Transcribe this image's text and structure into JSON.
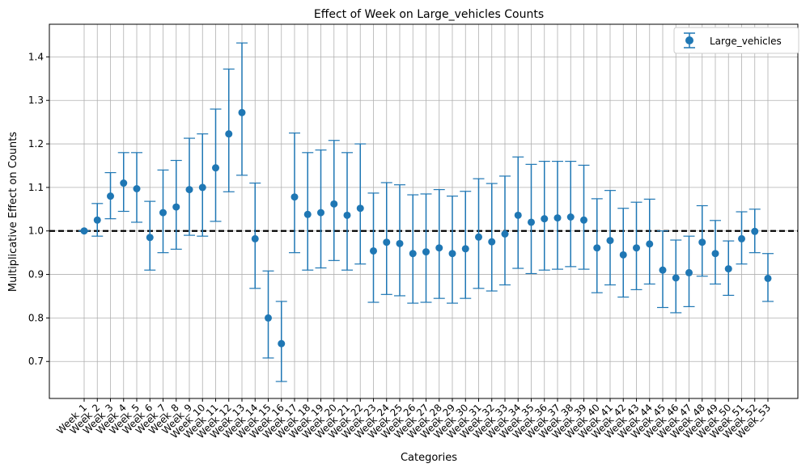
{
  "chart_data": {
    "type": "errorbar",
    "title": "Effect of Week on Large_vehicles Counts",
    "xlabel": "Categories",
    "ylabel": "Multiplicative Effect on Counts",
    "ylim": [
      0.615,
      1.475
    ],
    "yticks": [
      0.7,
      0.8,
      0.9,
      1.0,
      1.1,
      1.2,
      1.3,
      1.4
    ],
    "ytick_labels": [
      "0.7",
      "0.8",
      "0.9",
      "1.0",
      "1.1",
      "1.2",
      "1.3",
      "1.4"
    ],
    "reference_line": 1.0,
    "grid": true,
    "legend_position": "top-right",
    "series": [
      {
        "name": "Large_vehicles",
        "color": "#1f77b4",
        "categories": [
          "Week_1",
          "Week_2",
          "Week_3",
          "Week_4",
          "Week_5",
          "Week_6",
          "Week_7",
          "Week_8",
          "Week_9",
          "Week_10",
          "Week_11",
          "Week_12",
          "Week_13",
          "Week_14",
          "Week_15",
          "Week_16",
          "Week_17",
          "Week_18",
          "Week_19",
          "Week_20",
          "Week_21",
          "Week_22",
          "Week_23",
          "Week_24",
          "Week_25",
          "Week_26",
          "Week_27",
          "Week_28",
          "Week_29",
          "Week_30",
          "Week_31",
          "Week_32",
          "Week_33",
          "Week_34",
          "Week_35",
          "Week_36",
          "Week_37",
          "Week_38",
          "Week_39",
          "Week_40",
          "Week_41",
          "Week_42",
          "Week_43",
          "Week_44",
          "Week_45",
          "Week_46",
          "Week_47",
          "Week_48",
          "Week_49",
          "Week_50",
          "Week_51",
          "Week_52",
          "Week_53"
        ],
        "values": [
          1.0,
          1.025,
          1.08,
          1.11,
          1.097,
          0.985,
          1.042,
          1.055,
          1.095,
          1.1,
          1.145,
          1.223,
          1.272,
          0.982,
          0.8,
          0.741,
          1.078,
          1.038,
          1.042,
          1.062,
          1.036,
          1.052,
          0.954,
          0.974,
          0.971,
          0.948,
          0.952,
          0.961,
          0.948,
          0.959,
          0.986,
          0.975,
          0.993,
          1.036,
          1.02,
          1.028,
          1.03,
          1.032,
          1.025,
          0.961,
          0.978,
          0.945,
          0.961,
          0.97,
          0.91,
          0.892,
          0.904,
          0.974,
          0.948,
          0.913,
          0.982,
          0.999,
          0.891
        ],
        "lower": [
          1.0,
          0.988,
          1.028,
          1.045,
          1.02,
          0.91,
          0.95,
          0.958,
          0.99,
          0.988,
          1.022,
          1.09,
          1.128,
          0.868,
          0.708,
          0.654,
          0.95,
          0.91,
          0.915,
          0.932,
          0.91,
          0.924,
          0.836,
          0.854,
          0.851,
          0.834,
          0.836,
          0.845,
          0.834,
          0.845,
          0.868,
          0.862,
          0.876,
          0.914,
          0.902,
          0.91,
          0.912,
          0.918,
          0.912,
          0.858,
          0.876,
          0.848,
          0.865,
          0.878,
          0.824,
          0.812,
          0.826,
          0.896,
          0.878,
          0.852,
          0.924,
          0.95,
          0.838
        ],
        "upper": [
          1.0,
          1.063,
          1.134,
          1.18,
          1.18,
          1.068,
          1.14,
          1.162,
          1.213,
          1.223,
          1.28,
          1.372,
          1.432,
          1.11,
          0.908,
          0.838,
          1.225,
          1.18,
          1.186,
          1.208,
          1.18,
          1.2,
          1.087,
          1.111,
          1.106,
          1.083,
          1.085,
          1.095,
          1.08,
          1.091,
          1.12,
          1.109,
          1.126,
          1.17,
          1.153,
          1.16,
          1.16,
          1.16,
          1.151,
          1.074,
          1.093,
          1.052,
          1.066,
          1.073,
          1.0,
          0.979,
          0.988,
          1.058,
          1.024,
          0.977,
          1.044,
          1.05,
          0.948
        ]
      }
    ]
  }
}
